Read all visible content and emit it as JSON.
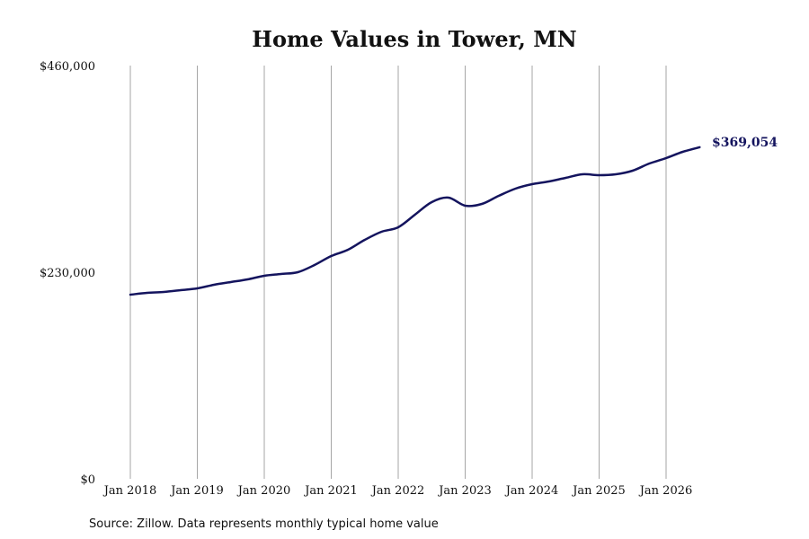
{
  "chart_data": {
    "type": "line",
    "title": "Home Values in Tower, MN",
    "source": "Source: Zillow. Data represents monthly typical home value",
    "ylim": [
      0,
      460000
    ],
    "y_ticks": [
      {
        "value": 0,
        "label": "$0"
      },
      {
        "value": 230000,
        "label": "$230,000"
      },
      {
        "value": 460000,
        "label": "$460,000"
      }
    ],
    "x_ticks": [
      {
        "date": "2018-01",
        "label": "Jan 2018"
      },
      {
        "date": "2019-01",
        "label": "Jan 2019"
      },
      {
        "date": "2020-01",
        "label": "Jan 2020"
      },
      {
        "date": "2021-01",
        "label": "Jan 2021"
      },
      {
        "date": "2022-01",
        "label": "Jan 2022"
      },
      {
        "date": "2023-01",
        "label": "Jan 2023"
      },
      {
        "date": "2024-01",
        "label": "Jan 2024"
      },
      {
        "date": "2025-01",
        "label": "Jan 2025"
      },
      {
        "date": "2026-01",
        "label": "Jan 2026"
      }
    ],
    "grid": {
      "vertical": true,
      "horizontal": false
    },
    "line_color": "#14145e",
    "end_label": "$369,054",
    "series": [
      {
        "x": [
          "2018-01",
          "2018-04",
          "2018-07",
          "2018-10",
          "2019-01",
          "2019-04",
          "2019-07",
          "2019-10",
          "2020-01",
          "2020-04",
          "2020-07",
          "2020-10",
          "2021-01",
          "2021-04",
          "2021-07",
          "2021-10",
          "2022-01",
          "2022-04",
          "2022-07",
          "2022-10",
          "2023-01",
          "2023-04",
          "2023-07",
          "2023-10",
          "2024-01",
          "2024-04",
          "2024-07",
          "2024-10",
          "2025-01",
          "2025-04",
          "2025-07",
          "2025-10",
          "2026-01",
          "2026-04",
          "2026-07"
        ],
        "y": [
          205000,
          207000,
          208000,
          210000,
          212000,
          216000,
          219000,
          222000,
          226000,
          228000,
          230000,
          238000,
          248000,
          255000,
          266000,
          275000,
          280000,
          294000,
          308000,
          313000,
          304000,
          306000,
          315000,
          323000,
          328000,
          331000,
          335000,
          339000,
          338000,
          339000,
          343000,
          351000,
          357000,
          364000,
          369054
        ]
      }
    ]
  }
}
